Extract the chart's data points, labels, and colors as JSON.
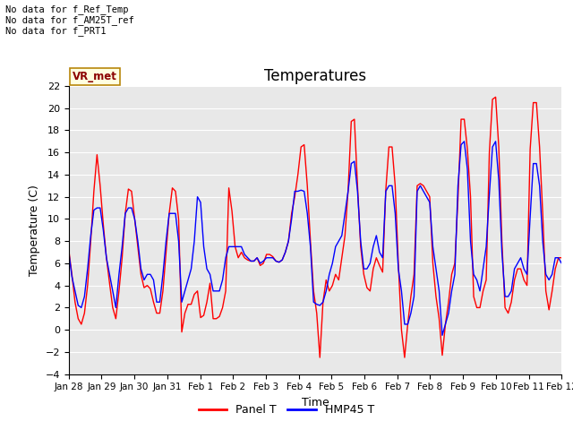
{
  "title": "Temperatures",
  "xlabel": "Time",
  "ylabel": "Temperature (C)",
  "ylim": [
    -4,
    22
  ],
  "yticks": [
    -4,
    -2,
    0,
    2,
    4,
    6,
    8,
    10,
    12,
    14,
    16,
    18,
    20,
    22
  ],
  "xtick_labels": [
    "Jan 28",
    "Jan 29",
    "Jan 30",
    "Jan 31",
    "Feb 1",
    "Feb 2",
    "Feb 3",
    "Feb 4",
    "Feb 5",
    "Feb 6",
    "Feb 7",
    "Feb 8",
    "Feb 9",
    "Feb 10",
    "Feb 11",
    "Feb 12"
  ],
  "no_data_texts": [
    "No data for f_Ref_Temp",
    "No data for f_AM25T_ref",
    "No data for f_PRT1"
  ],
  "vr_met_label": "VR_met",
  "legend_entries": [
    "Panel T",
    "HMP45 T"
  ],
  "line_colors": [
    "red",
    "blue"
  ],
  "background_color": "#e8e8e8",
  "panel_t": [
    7.2,
    5.0,
    2.5,
    1.0,
    0.5,
    1.5,
    4.0,
    8.0,
    12.5,
    15.8,
    13.0,
    9.5,
    6.5,
    4.2,
    2.0,
    1.0,
    3.5,
    6.5,
    10.5,
    12.7,
    12.5,
    10.0,
    7.5,
    5.0,
    3.8,
    4.0,
    3.7,
    2.5,
    1.5,
    1.5,
    3.5,
    7.0,
    10.5,
    12.8,
    12.5,
    10.0,
    -0.2,
    1.5,
    2.3,
    2.3,
    3.2,
    3.5,
    1.1,
    1.3,
    2.5,
    4.2,
    1.0,
    1.0,
    1.2,
    2.0,
    3.5,
    12.8,
    10.7,
    7.5,
    6.5,
    7.0,
    6.5,
    6.3,
    6.2,
    6.2,
    6.5,
    5.8,
    6.0,
    6.8,
    6.8,
    6.6,
    6.2,
    6.1,
    6.3,
    7.0,
    8.0,
    10.5,
    12.0,
    14.0,
    16.5,
    16.7,
    13.0,
    8.0,
    3.5,
    1.5,
    -2.5,
    2.5,
    4.5,
    3.5,
    4.0,
    5.0,
    4.5,
    6.5,
    8.5,
    12.6,
    18.8,
    19.0,
    13.0,
    7.5,
    5.0,
    3.8,
    3.5,
    5.5,
    6.5,
    5.8,
    5.2,
    12.6,
    16.5,
    16.5,
    13.0,
    6.0,
    0.0,
    -2.5,
    0.5,
    3.0,
    5.0,
    13.0,
    13.2,
    13.0,
    12.5,
    12.0,
    6.0,
    3.0,
    1.0,
    -2.3,
    0.5,
    2.5,
    5.0,
    6.0,
    11.8,
    19.0,
    19.0,
    16.3,
    12.0,
    3.0,
    2.0,
    2.0,
    3.5,
    4.5,
    16.0,
    20.8,
    21.0,
    16.5,
    8.0,
    2.0,
    1.5,
    2.5,
    4.5,
    5.5,
    5.5,
    4.5,
    4.0,
    16.3,
    20.5,
    20.5,
    16.5,
    10.5,
    3.5,
    1.8,
    3.5,
    5.5,
    6.5,
    6.5
  ],
  "hmp45_t": [
    7.0,
    4.8,
    3.5,
    2.2,
    2.0,
    3.0,
    5.5,
    8.5,
    10.8,
    11.0,
    11.0,
    9.0,
    6.5,
    5.0,
    3.5,
    2.0,
    5.0,
    7.5,
    10.5,
    11.0,
    11.0,
    10.0,
    8.0,
    5.5,
    4.5,
    5.0,
    5.0,
    4.5,
    2.5,
    2.5,
    5.0,
    8.0,
    10.5,
    10.5,
    10.5,
    8.0,
    2.5,
    3.5,
    4.5,
    5.5,
    8.0,
    12.0,
    11.5,
    7.5,
    5.5,
    5.0,
    3.5,
    3.5,
    3.5,
    4.5,
    6.5,
    7.5,
    7.5,
    7.5,
    7.5,
    7.5,
    6.8,
    6.5,
    6.2,
    6.2,
    6.5,
    6.0,
    6.2,
    6.5,
    6.5,
    6.5,
    6.2,
    6.1,
    6.3,
    7.0,
    8.0,
    10.0,
    12.5,
    12.5,
    12.6,
    12.5,
    10.5,
    7.5,
    2.5,
    2.3,
    2.2,
    2.5,
    3.5,
    5.0,
    6.0,
    7.5,
    8.0,
    8.5,
    10.5,
    12.5,
    15.0,
    15.2,
    12.5,
    8.0,
    5.5,
    5.5,
    6.0,
    7.5,
    8.5,
    7.0,
    6.5,
    12.5,
    13.0,
    13.0,
    10.5,
    5.5,
    3.5,
    0.5,
    0.5,
    1.5,
    3.0,
    12.5,
    13.0,
    12.5,
    12.0,
    11.5,
    7.5,
    5.5,
    3.5,
    -0.5,
    0.5,
    1.5,
    3.5,
    5.0,
    13.0,
    16.7,
    17.0,
    14.5,
    8.0,
    5.0,
    4.5,
    3.5,
    5.5,
    7.5,
    12.2,
    16.5,
    17.0,
    13.5,
    7.0,
    3.0,
    3.0,
    3.5,
    5.5,
    6.0,
    6.5,
    5.5,
    5.0,
    10.2,
    15.0,
    15.0,
    13.0,
    8.0,
    5.0,
    4.5,
    5.0,
    6.5,
    6.5,
    6.0
  ]
}
